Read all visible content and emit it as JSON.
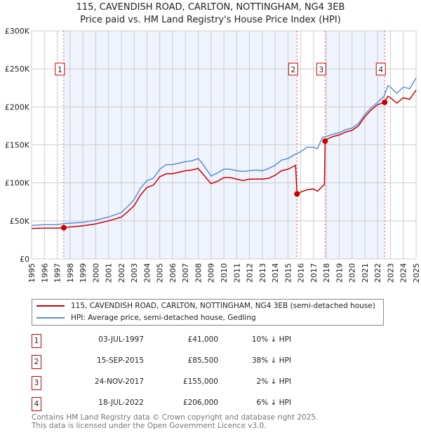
{
  "chart_data": {
    "type": "line",
    "title": "115, CAVENDISH ROAD, CARLTON, NOTTINGHAM, NG4 3EB",
    "subtitle": "Price paid vs. HM Land Registry's House Price Index (HPI)",
    "xlim": [
      1995,
      2025
    ],
    "ylim": [
      0,
      300000
    ],
    "y_ticks": [
      {
        "v": 0,
        "label": "£0"
      },
      {
        "v": 50000,
        "label": "£50K"
      },
      {
        "v": 100000,
        "label": "£100K"
      },
      {
        "v": 150000,
        "label": "£150K"
      },
      {
        "v": 200000,
        "label": "£200K"
      },
      {
        "v": 250000,
        "label": "£250K"
      },
      {
        "v": 300000,
        "label": "£300K"
      }
    ],
    "x_ticks": [
      "1995",
      "1996",
      "1997",
      "1998",
      "1999",
      "2000",
      "2001",
      "2002",
      "2003",
      "2004",
      "2005",
      "2006",
      "2007",
      "2008",
      "2009",
      "2010",
      "2011",
      "2012",
      "2013",
      "2014",
      "2015",
      "2016",
      "2017",
      "2018",
      "2019",
      "2020",
      "2021",
      "2022",
      "2023",
      "2024",
      "2025"
    ],
    "grid": true,
    "series": [
      {
        "name": "115, CAVENDISH ROAD, CARLTON, NOTTINGHAM, NG4 3EB (semi-detached house)",
        "color": "#cc0000",
        "x": [
          1995,
          1996,
          1997,
          1997.5,
          1998,
          1999,
          2000,
          2001,
          2002,
          2002.5,
          2003,
          2003.5,
          2004,
          2004.5,
          2005,
          2005.5,
          2006,
          2006.5,
          2007,
          2007.5,
          2008,
          2008.3,
          2009,
          2009.5,
          2010,
          2010.5,
          2011,
          2011.5,
          2012,
          2012.5,
          2013,
          2013.5,
          2014,
          2014.5,
          2015,
          2015.6,
          2015.71,
          2016,
          2016.5,
          2017,
          2017.3,
          2017.85,
          2017.9,
          2018,
          2018.5,
          2019,
          2019.5,
          2020,
          2020.5,
          2021,
          2021.5,
          2022,
          2022.55,
          2022.8,
          2023,
          2023.5,
          2024,
          2024.5,
          2025
        ],
        "y": [
          40000,
          40500,
          40500,
          41000,
          42000,
          43500,
          46000,
          50000,
          55000,
          62000,
          70000,
          84000,
          94000,
          97000,
          108000,
          112000,
          112000,
          114000,
          116000,
          117000,
          119000,
          113000,
          99000,
          102000,
          107000,
          107000,
          105000,
          103000,
          105000,
          105000,
          105000,
          106000,
          110000,
          116000,
          118000,
          123000,
          85500,
          88000,
          91000,
          92000,
          89000,
          98000,
          155000,
          157000,
          161000,
          163000,
          167000,
          169000,
          175000,
          187000,
          196000,
          203000,
          206000,
          214000,
          212000,
          205000,
          212000,
          210000,
          222000
        ]
      },
      {
        "name": "HPI: Average price, semi-detached house, Gedling",
        "color": "#5b8fd6",
        "x": [
          1995,
          1996,
          1997,
          1997.5,
          1998,
          1999,
          2000,
          2001,
          2002,
          2002.5,
          2003,
          2003.5,
          2004,
          2004.5,
          2005,
          2005.5,
          2006,
          2006.5,
          2007,
          2007.5,
          2008,
          2008.3,
          2009,
          2009.5,
          2010,
          2010.5,
          2011,
          2011.5,
          2012,
          2012.5,
          2013,
          2013.5,
          2014,
          2014.5,
          2015,
          2015.5,
          2016,
          2016.5,
          2017,
          2017.3,
          2017.7,
          2018,
          2018.5,
          2019,
          2019.5,
          2020,
          2020.5,
          2021,
          2021.5,
          2022,
          2022.5,
          2022.8,
          2023,
          2023.5,
          2024,
          2024.5,
          2025
        ],
        "y": [
          44000,
          45000,
          45000,
          46500,
          47000,
          48000,
          51000,
          55000,
          61000,
          69000,
          78000,
          93000,
          103000,
          106000,
          118000,
          124000,
          124000,
          126000,
          128000,
          129000,
          132000,
          126000,
          109000,
          113000,
          118000,
          118000,
          116000,
          115000,
          116000,
          117000,
          116000,
          119000,
          123000,
          130000,
          132000,
          137000,
          141000,
          147000,
          147000,
          145000,
          160000,
          161000,
          164000,
          166000,
          170000,
          172000,
          178000,
          190000,
          199000,
          206000,
          214000,
          228000,
          226000,
          218000,
          226000,
          224000,
          238000
        ]
      }
    ],
    "sales": [
      {
        "n": "1",
        "x": 1997.51,
        "price": 41000,
        "date": "03-JUL-1997",
        "price_label": "£41,000",
        "hpi": "10% ↓ HPI"
      },
      {
        "n": "2",
        "x": 2015.71,
        "price": 85500,
        "date": "15-SEP-2015",
        "price_label": "£85,500",
        "hpi": "38% ↓ HPI"
      },
      {
        "n": "3",
        "x": 2017.9,
        "price": 155000,
        "date": "24-NOV-2017",
        "price_label": "£155,000",
        "hpi": "2% ↓ HPI"
      },
      {
        "n": "4",
        "x": 2022.55,
        "price": 206000,
        "date": "18-JUL-2022",
        "price_label": "£206,000",
        "hpi": "6% ↓ HPI"
      }
    ],
    "shaded_ranges": [
      [
        1997.51,
        2015.71
      ],
      [
        2017.9,
        2022.55
      ]
    ],
    "footer": [
      "Contains HM Land Registry data © Crown copyright and database right 2025.",
      "This data is licensed under the Open Government Licence v3.0."
    ]
  }
}
